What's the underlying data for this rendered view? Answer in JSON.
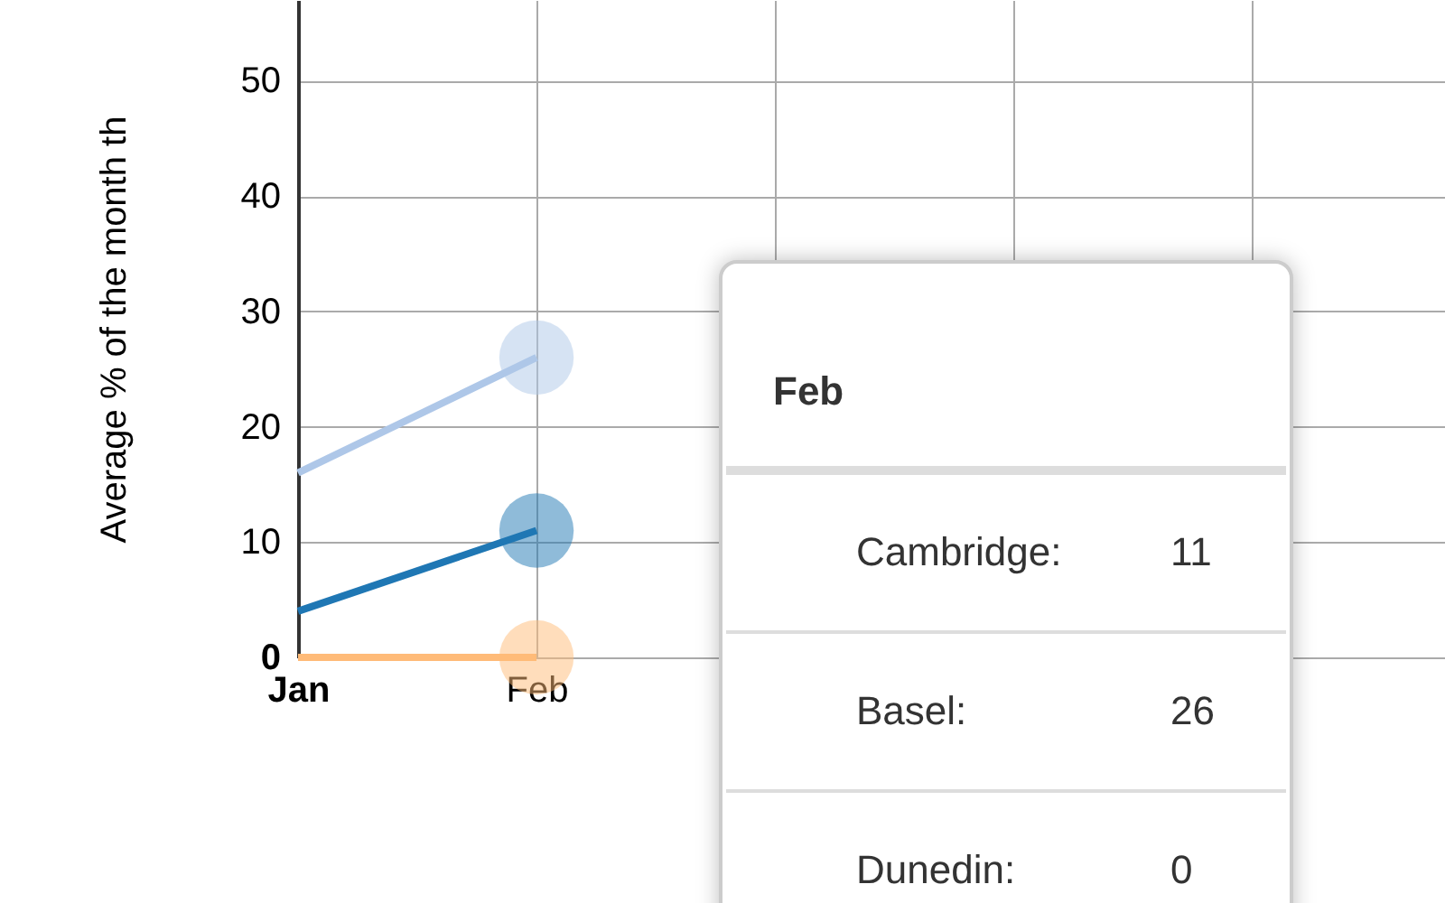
{
  "chart_data": {
    "type": "line",
    "ylabel": "Average % of the month th",
    "categories": [
      "Jan",
      "Feb",
      null,
      null,
      null
    ],
    "series": [
      {
        "color": "#1f77b4",
        "values": [
          4,
          11,
          null,
          null,
          null
        ]
      },
      {
        "color": "#aec7e8",
        "values": [
          16,
          26,
          null,
          null,
          null
        ]
      },
      {
        "color": "#ffbb78",
        "values": [
          0,
          0,
          null,
          null,
          null
        ]
      }
    ],
    "annotations": [
      "Cambridge:",
      "11",
      "Basel:",
      "26",
      "Dunedin:",
      "0"
    ],
    "ylim": [
      0,
      57
    ],
    "yticks": [
      0,
      10,
      20,
      30,
      40,
      50
    ],
    "grid": true,
    "marker": "circle"
  }
}
